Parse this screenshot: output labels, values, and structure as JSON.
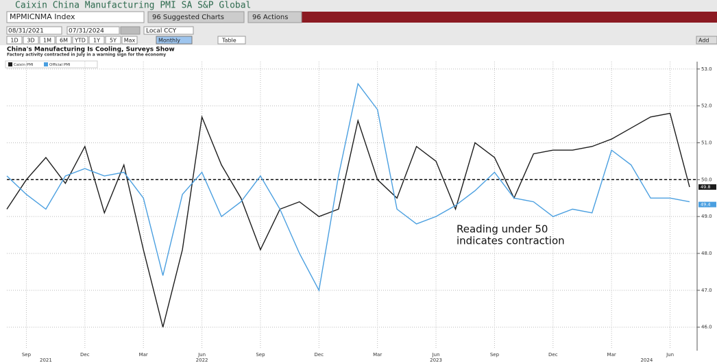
{
  "header": {
    "title": "Caixin China Manufacturing PMI SA S&P Global",
    "ticker": "MPMICNMA Index",
    "suggested": "96 Suggested Charts",
    "actions": "96 Actions"
  },
  "toolbar": {
    "start_date": "08/31/2021",
    "end_date": "07/31/2024",
    "currency": "Local CCY",
    "periods": [
      "1D",
      "3D",
      "1M",
      "6M",
      "YTD",
      "1Y",
      "5Y",
      "Max"
    ],
    "frequency": "Monthly",
    "table": "Table",
    "add": "Add"
  },
  "chart_data": {
    "type": "line",
    "title": "China's Manufacturing Is Cooling, Surveys Show",
    "subtitle": "Factory activity contracted in July in a warning sign for the economy",
    "annotation": [
      "Reading under 50",
      "indicates contraction"
    ],
    "categories": [
      null,
      "Sep",
      null,
      null,
      "Dec",
      null,
      null,
      "Mar",
      null,
      null,
      "Jun",
      null,
      null,
      "Sep",
      null,
      null,
      "Dec",
      null,
      null,
      "Mar",
      null,
      null,
      "Jun",
      null,
      null,
      "Sep",
      null,
      null,
      "Dec",
      null,
      null,
      "Mar",
      null,
      null,
      "Jun",
      null
    ],
    "year_labels": [
      "2021",
      "2022",
      "2023",
      "2024"
    ],
    "series": [
      {
        "name": "Caixin PMI",
        "color": "#1c1c1c",
        "values": [
          49.2,
          50.0,
          50.6,
          49.9,
          50.9,
          49.1,
          50.4,
          48.1,
          46.0,
          48.1,
          51.7,
          50.4,
          49.5,
          48.1,
          49.2,
          49.4,
          49.0,
          49.2,
          51.6,
          50.0,
          49.5,
          50.9,
          50.5,
          49.2,
          51.0,
          50.6,
          49.5,
          50.7,
          50.8,
          50.8,
          50.9,
          51.1,
          51.4,
          51.7,
          51.8,
          49.8
        ],
        "last_label": "49.8"
      },
      {
        "name": "Official PMI",
        "color": "#4a9fe0",
        "values": [
          50.1,
          49.6,
          49.2,
          50.1,
          50.3,
          50.1,
          50.2,
          49.5,
          47.4,
          49.6,
          50.2,
          49.0,
          49.4,
          50.1,
          49.2,
          48.0,
          47.0,
          50.1,
          52.6,
          51.9,
          49.2,
          48.8,
          49.0,
          49.3,
          49.7,
          50.2,
          49.5,
          49.4,
          49.0,
          49.2,
          49.1,
          50.8,
          50.4,
          49.5,
          49.5,
          49.4
        ],
        "last_label": "49.4"
      }
    ],
    "reference_line": 50,
    "ylim": [
      45.4,
      53.2
    ],
    "yticks": [
      {
        "value": 46,
        "label": "46.0"
      },
      {
        "value": 47,
        "label": "47.0"
      },
      {
        "value": 48,
        "label": "48.0"
      },
      {
        "value": 49,
        "label": "49.0"
      },
      {
        "value": 50,
        "label": "50.0"
      },
      {
        "value": 51,
        "label": "51.0"
      },
      {
        "value": 52,
        "label": "52.0"
      },
      {
        "value": 53,
        "label": "53.0"
      }
    ],
    "grid": true
  }
}
